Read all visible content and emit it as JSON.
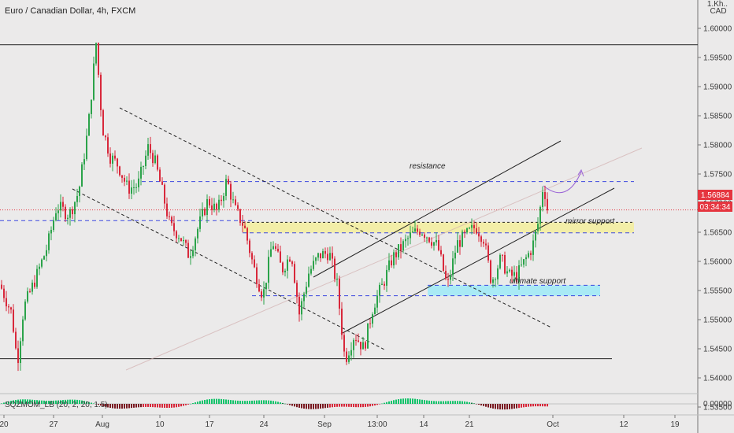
{
  "chart_data": {
    "type": "candlestick",
    "title": "Euro / Canadian Dollar, 4h, FXCM",
    "currency_label": [
      "1.Kh..",
      "CAD"
    ],
    "ylim": [
      1.5315,
      1.6105
    ],
    "y_ticks": [
      "1.60000",
      "1.59500",
      "1.59000",
      "1.58500",
      "1.58000",
      "1.57500",
      "1.57000",
      "1.56500",
      "1.56000",
      "1.55500",
      "1.55000",
      "1.54500",
      "1.54000",
      "1.53500"
    ],
    "x_ticks": [
      "20",
      "27",
      "Aug",
      "10",
      "17",
      "24",
      "Sep",
      "13:00",
      "14",
      "21",
      "Oct",
      "12",
      "19"
    ],
    "last_price": "1.56884",
    "countdown": "03:34:34",
    "indicator": {
      "label": "SQZMOM_LB (20, 2, 20, 1.5)",
      "zero_label": "0.00000"
    },
    "annotations": {
      "resistance": "resistance",
      "mirror_support": "mirror support",
      "ultimate_support": "ultimate support"
    },
    "levels": {
      "top_line": 1.5972,
      "bottom_line": 1.5433,
      "resistance": 1.5737,
      "zone_upper": 1.5667,
      "zone_lower": 1.5649,
      "mid_dashed": 1.567,
      "ultimate_upper": 1.5559,
      "ultimate_lower": 1.5541,
      "last_price": 1.56884
    },
    "key_points": [
      {
        "x": "Aug",
        "y": 1.5978,
        "label": "high"
      },
      {
        "x": "Sep",
        "y": 1.5428,
        "label": "low"
      },
      {
        "x": "Oct",
        "y": 1.5738,
        "label": "recent high"
      }
    ],
    "colors": {
      "up": "#2ba34a",
      "down": "#d8283b",
      "zone_yellow": "#f3eea8",
      "zone_cyan": "#a9eaf5",
      "guide_blue": "#3d48e0",
      "price_tag": "#e5353f"
    }
  }
}
